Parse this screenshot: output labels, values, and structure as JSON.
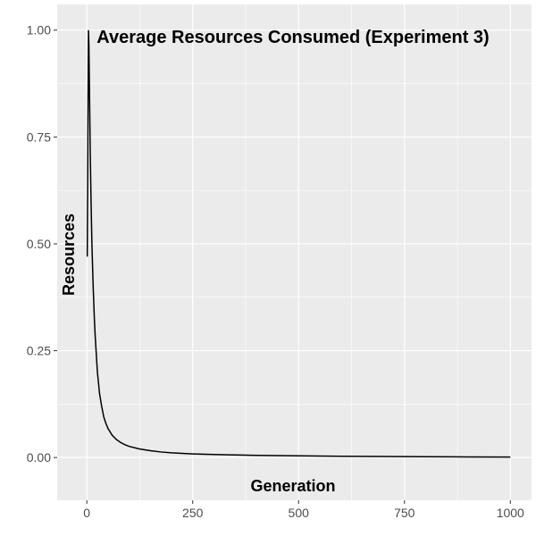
{
  "chart_data": {
    "type": "line",
    "title": "Average Resources Consumed (Experiment 3)",
    "xlabel": "Generation",
    "ylabel": "Resources",
    "xlim": [
      -70,
      1050
    ],
    "ylim": [
      -0.1,
      1.06
    ],
    "x_ticks": [
      0,
      250,
      500,
      750,
      1000
    ],
    "x_tick_labels": [
      "0",
      "250",
      "500",
      "750",
      "1000"
    ],
    "y_ticks": [
      0,
      0.25,
      0.5,
      0.75,
      1.0
    ],
    "y_tick_labels": [
      "0.00",
      "0.25",
      "0.50",
      "0.75",
      "1.00"
    ],
    "grid": true,
    "colors": {
      "panel": "#ebebeb",
      "grid": "#ffffff",
      "line": "#000000"
    },
    "series": [
      {
        "x": [
          1,
          2,
          3,
          4,
          5,
          6,
          8,
          10,
          12,
          15,
          18,
          20,
          25,
          30,
          35,
          40,
          45,
          50,
          60,
          70,
          80,
          90,
          100,
          125,
          150,
          175,
          200,
          250,
          300,
          350,
          400,
          500,
          600,
          700,
          800,
          900,
          1000
        ],
        "values": [
          0.47,
          0.63,
          0.85,
          1.0,
          0.96,
          0.88,
          0.72,
          0.6,
          0.5,
          0.4,
          0.32,
          0.28,
          0.2,
          0.15,
          0.12,
          0.095,
          0.08,
          0.068,
          0.052,
          0.042,
          0.035,
          0.03,
          0.026,
          0.02,
          0.016,
          0.013,
          0.011,
          0.0085,
          0.007,
          0.006,
          0.005,
          0.004,
          0.003,
          0.0025,
          0.002,
          0.0015,
          0.001
        ]
      }
    ]
  }
}
